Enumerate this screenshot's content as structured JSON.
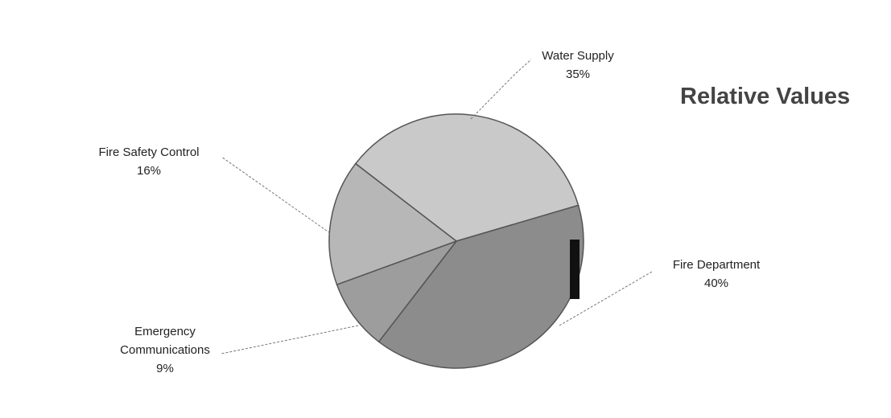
{
  "chart_data": {
    "type": "pie",
    "title": "Relative Values",
    "categories": [
      "Water Supply",
      "Fire Department",
      "Emergency Communications",
      "Fire Safety Control"
    ],
    "values": [
      35,
      40,
      9,
      16
    ],
    "value_labels": [
      "35%",
      "40%",
      "9%",
      "16%"
    ],
    "colors": [
      "#c9c9c9",
      "#8c8c8c",
      "#9d9d9d",
      "#b7b7b7"
    ]
  }
}
